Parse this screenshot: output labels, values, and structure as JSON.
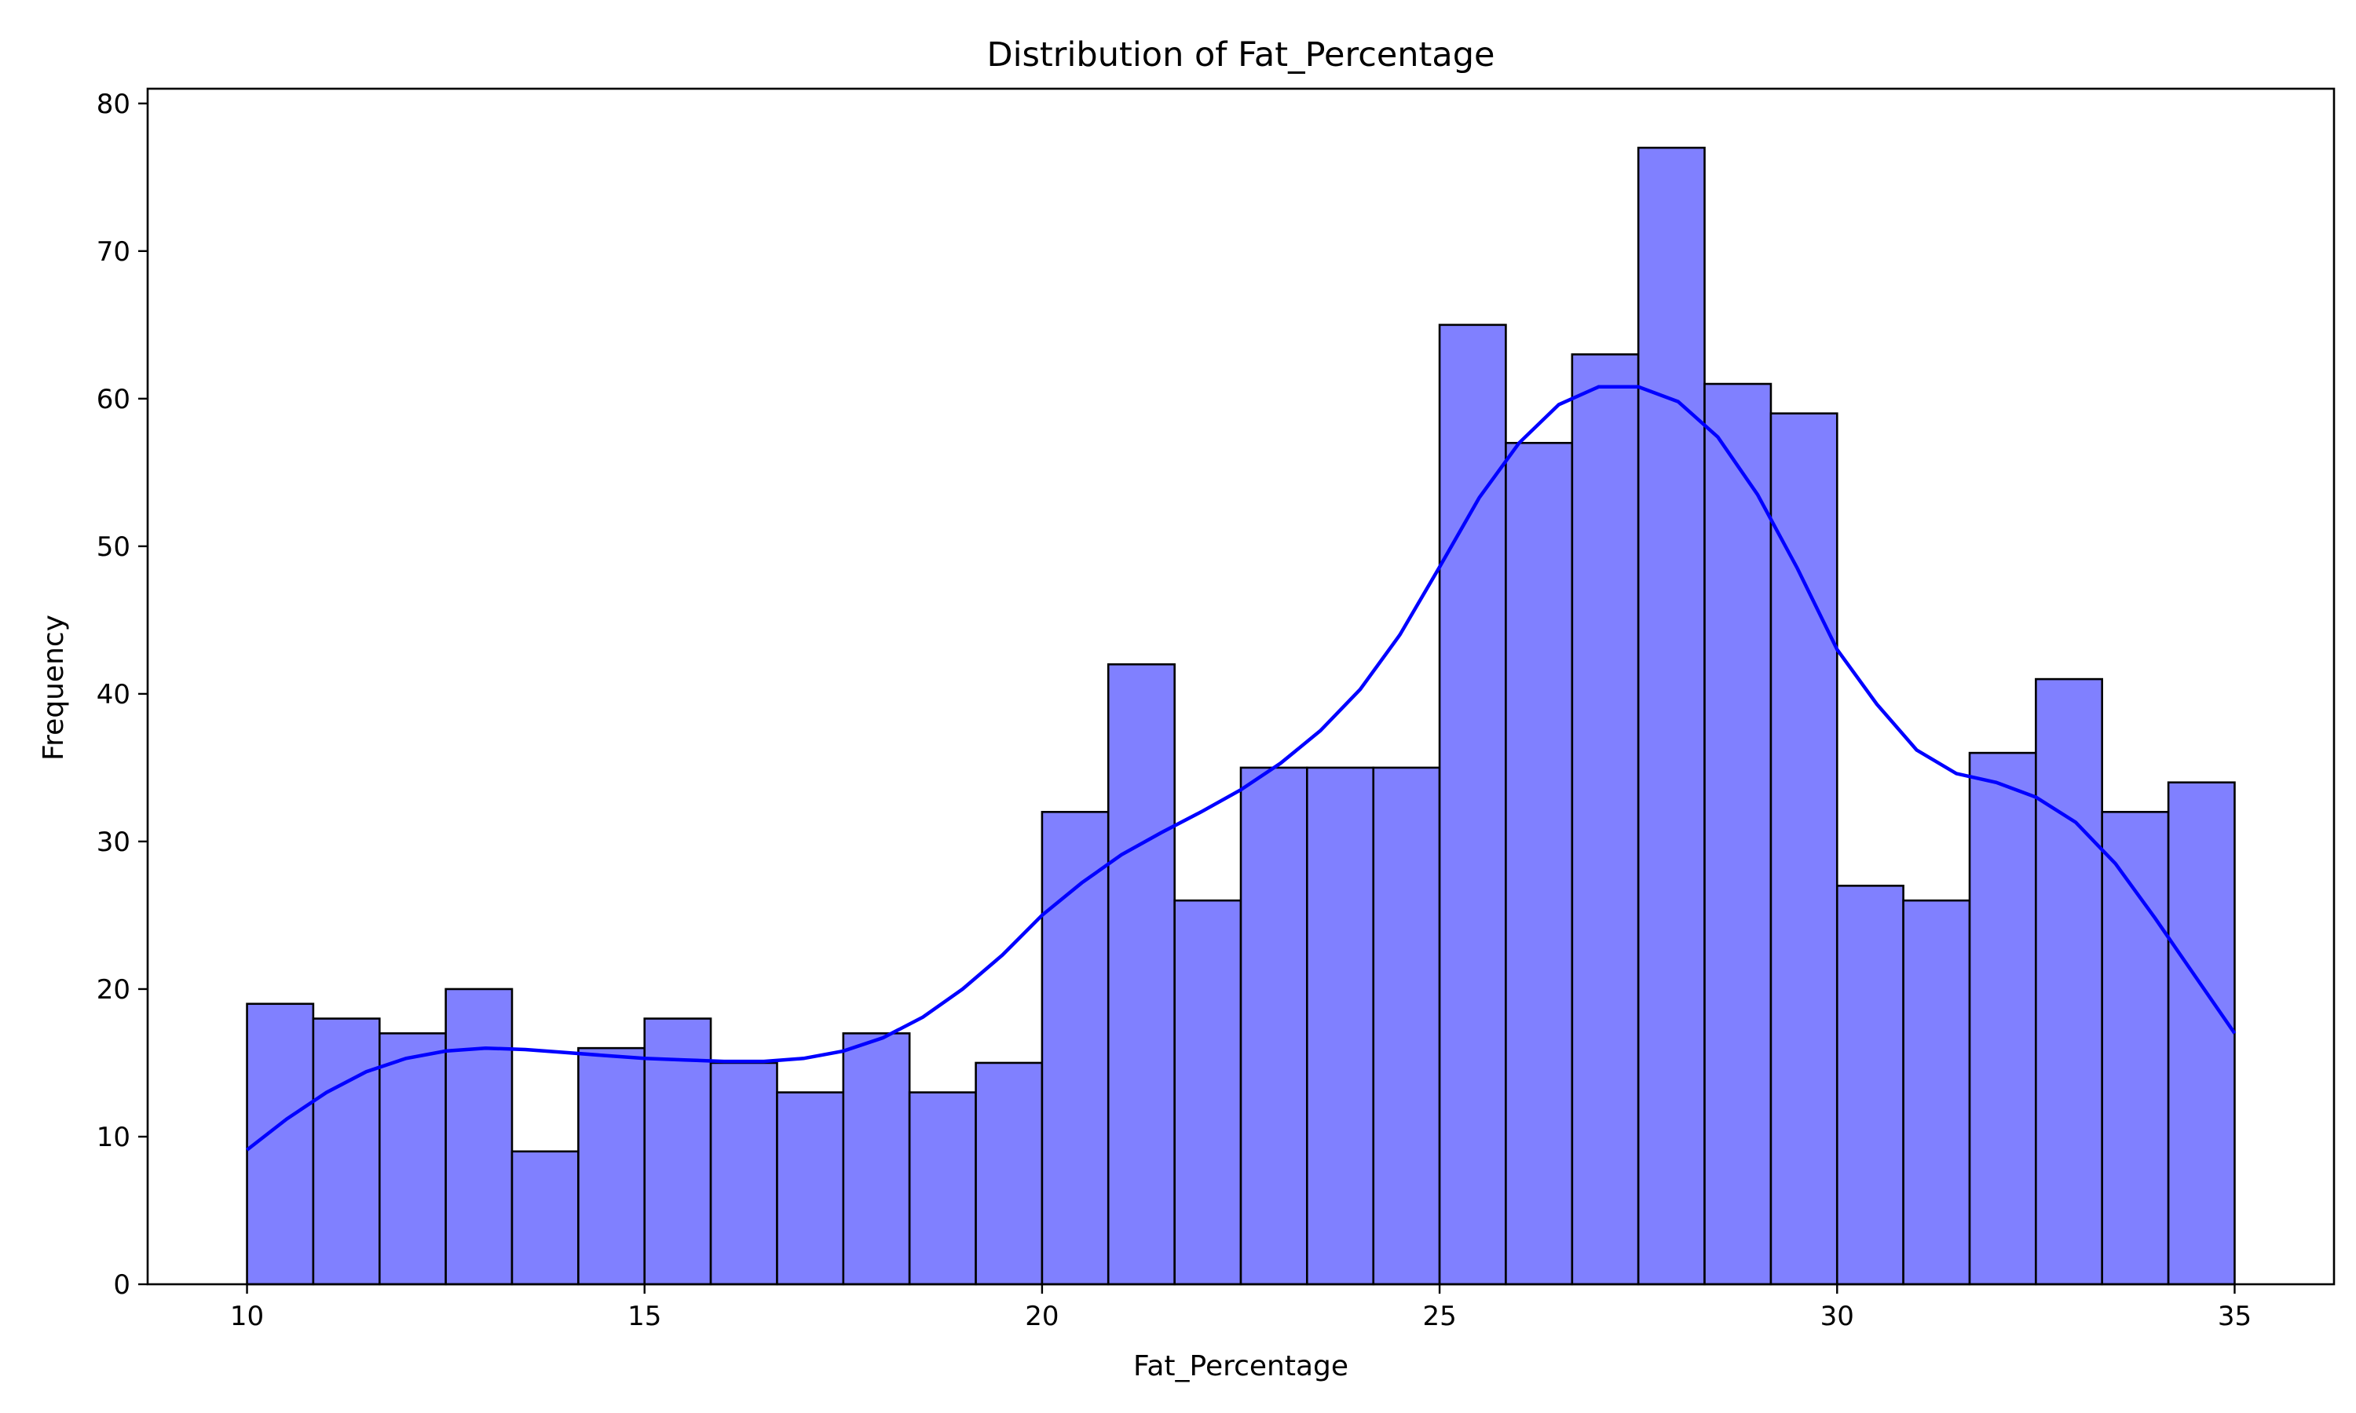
{
  "chart_data": {
    "type": "bar",
    "title": "Distribution of Fat_Percentage",
    "xlabel": "Fat_Percentage",
    "ylabel": "Frequency",
    "xlim": [
      8.75,
      36.25
    ],
    "ylim": [
      0,
      81
    ],
    "xticks": [
      10,
      15,
      20,
      25,
      30,
      35
    ],
    "yticks": [
      0,
      10,
      20,
      30,
      40,
      50,
      60,
      70,
      80
    ],
    "bin_edges": [
      10.0,
      10.833,
      11.667,
      12.5,
      13.333,
      14.167,
      15.0,
      15.833,
      16.667,
      17.5,
      18.333,
      19.167,
      20.0,
      20.833,
      21.667,
      22.5,
      23.333,
      24.167,
      25.0,
      25.833,
      26.667,
      27.5,
      28.333,
      29.167,
      30.0,
      30.833,
      31.667,
      32.5,
      33.333,
      34.167,
      35.0
    ],
    "values": [
      19,
      18,
      17,
      20,
      9,
      16,
      18,
      15,
      13,
      17,
      13,
      15,
      32,
      42,
      26,
      35,
      35,
      35,
      65,
      57,
      63,
      77,
      61,
      59,
      27,
      26,
      36,
      41,
      32,
      34
    ],
    "kde": {
      "x": [
        10,
        10.5,
        11,
        11.5,
        12,
        12.5,
        13,
        13.5,
        14,
        14.5,
        15,
        15.5,
        16,
        16.5,
        17,
        17.5,
        18,
        18.5,
        19,
        19.5,
        20,
        20.5,
        21,
        21.5,
        22,
        22.5,
        23,
        23.5,
        24,
        24.5,
        25,
        25.5,
        26,
        26.5,
        27,
        27.5,
        28,
        28.5,
        29,
        29.5,
        30,
        30.5,
        31,
        31.5,
        32,
        32.5,
        33,
        33.5,
        34,
        34.5,
        35
      ],
      "y": [
        9.1,
        11.2,
        13.0,
        14.4,
        15.3,
        15.8,
        16.0,
        15.9,
        15.7,
        15.5,
        15.3,
        15.2,
        15.1,
        15.1,
        15.3,
        15.8,
        16.7,
        18.1,
        20.0,
        22.3,
        25.0,
        27.2,
        29.1,
        30.6,
        32.0,
        33.5,
        35.3,
        37.5,
        40.3,
        44.0,
        48.6,
        53.3,
        57.0,
        59.6,
        60.8,
        60.8,
        59.8,
        57.4,
        53.5,
        48.5,
        43.0,
        39.3,
        36.2,
        34.6,
        34.0,
        33.0,
        31.3,
        28.5,
        24.8,
        20.9,
        17.0
      ]
    },
    "bar_color": "#8080ff",
    "bar_edge_color": "#000000",
    "kde_color": "#0000ff",
    "grid": false,
    "legend": "none"
  }
}
